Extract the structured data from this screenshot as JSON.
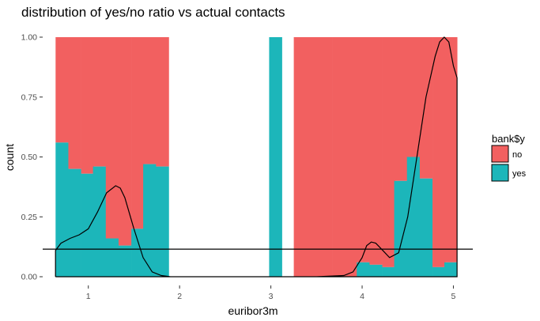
{
  "chart_data": {
    "type": "bar",
    "title": "distribution of yes/no ratio vs actual contacts",
    "xlabel": "euribor3m",
    "ylabel": "count",
    "xlim": [
      0.5,
      5.1
    ],
    "ylim": [
      0,
      1.0
    ],
    "x_ticks": [
      1,
      2,
      3,
      4,
      5
    ],
    "y_ticks": [
      0.0,
      0.25,
      0.5,
      0.75,
      1.0
    ],
    "y_tick_labels": [
      "0.00",
      "0.25",
      "0.50",
      "0.75",
      "1.00"
    ],
    "grid": false,
    "stacked_fill": true,
    "bin_width": 0.1375,
    "bins": [
      {
        "x": 0.71,
        "yes": 0.56
      },
      {
        "x": 0.85,
        "yes": 0.45
      },
      {
        "x": 0.99,
        "yes": 0.43
      },
      {
        "x": 1.12,
        "yes": 0.46
      },
      {
        "x": 1.26,
        "yes": 0.16
      },
      {
        "x": 1.4,
        "yes": 0.13
      },
      {
        "x": 1.54,
        "yes": 0.2
      },
      {
        "x": 1.67,
        "yes": 0.47
      },
      {
        "x": 1.81,
        "yes": 0.46
      },
      {
        "x": 3.05,
        "yes": 1.0
      },
      {
        "x": 3.32,
        "yes": 0.0
      },
      {
        "x": 3.46,
        "yes": 0.0
      },
      {
        "x": 3.6,
        "yes": 0.0
      },
      {
        "x": 3.74,
        "yes": 0.0
      },
      {
        "x": 3.87,
        "yes": 0.0
      },
      {
        "x": 4.01,
        "yes": 0.06
      },
      {
        "x": 4.15,
        "yes": 0.05
      },
      {
        "x": 4.29,
        "yes": 0.04
      },
      {
        "x": 4.42,
        "yes": 0.4
      },
      {
        "x": 4.56,
        "yes": 0.5
      },
      {
        "x": 4.7,
        "yes": 0.41
      },
      {
        "x": 4.84,
        "yes": 0.04
      },
      {
        "x": 4.97,
        "yes": 0.06
      }
    ],
    "density_curve": {
      "x": [
        0.64,
        0.64,
        0.7,
        0.8,
        0.9,
        1.0,
        1.1,
        1.2,
        1.3,
        1.35,
        1.4,
        1.5,
        1.6,
        1.7,
        1.8,
        1.9,
        2.0,
        2.2,
        2.5,
        3.0,
        3.5,
        3.8,
        3.9,
        4.0,
        4.05,
        4.1,
        4.15,
        4.2,
        4.3,
        4.4,
        4.5,
        4.6,
        4.7,
        4.8,
        4.85,
        4.9,
        4.95,
        5.0,
        5.04,
        5.04,
        0.64
      ],
      "y": [
        0.0,
        0.11,
        0.14,
        0.16,
        0.175,
        0.2,
        0.27,
        0.35,
        0.38,
        0.37,
        0.33,
        0.2,
        0.08,
        0.02,
        0.005,
        0.0,
        0.0,
        0.0,
        0.0,
        0.0,
        0.0,
        0.005,
        0.02,
        0.08,
        0.13,
        0.145,
        0.14,
        0.12,
        0.08,
        0.1,
        0.25,
        0.5,
        0.75,
        0.92,
        0.98,
        1.0,
        0.98,
        0.88,
        0.83,
        0.0,
        0.0
      ]
    },
    "hline": 0.115,
    "legend": {
      "title": "bank$y",
      "placement": "right",
      "items": [
        {
          "label": "no",
          "color": "#F8766D"
        },
        {
          "label": "yes",
          "color": "#00BFC4"
        }
      ]
    },
    "colors": {
      "no": "#F26060",
      "yes": "#1CB6BA",
      "line": "#000000"
    }
  }
}
